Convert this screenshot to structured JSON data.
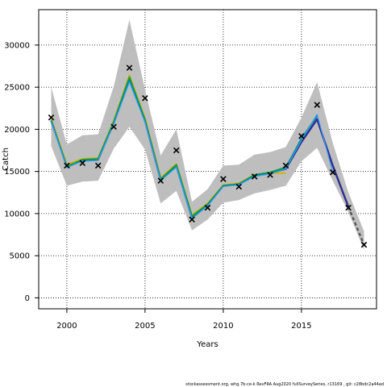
{
  "chart_data": {
    "type": "line",
    "title": "",
    "xlabel": "Years",
    "ylabel": "Catch",
    "xlim": [
      1998.2,
      2019.8
    ],
    "ylim": [
      -1300,
      34200
    ],
    "x_ticks": [
      2000,
      2005,
      2010,
      2015
    ],
    "y_ticks": [
      0,
      5000,
      10000,
      15000,
      20000,
      25000,
      30000
    ],
    "grid": true,
    "grid_style": "dotted",
    "legend": "none",
    "observed": {
      "marker": "x",
      "x": [
        1999,
        2000,
        2001,
        2002,
        2003,
        2004,
        2005,
        2006,
        2007,
        2008,
        2009,
        2010,
        2011,
        2012,
        2013,
        2014,
        2015,
        2016,
        2017,
        2018,
        2019
      ],
      "y": [
        21400,
        15700,
        16000,
        15700,
        20300,
        27300,
        23700,
        13900,
        17500,
        9300,
        10700,
        14100,
        13200,
        14400,
        14600,
        15700,
        19200,
        22900,
        14900,
        10700,
        6300
      ]
    },
    "confidence_band": {
      "color": "#bebebe",
      "x": [
        1999,
        2000,
        2001,
        2002,
        2003,
        2004,
        2005,
        2006,
        2007,
        2008,
        2009,
        2010,
        2011,
        2012,
        2013,
        2014,
        2015,
        2016,
        2017,
        2018,
        2019
      ],
      "lower": [
        18000,
        13300,
        13800,
        13900,
        17700,
        20300,
        17600,
        11200,
        12700,
        8000,
        9300,
        11300,
        11600,
        12400,
        12800,
        13300,
        16200,
        17800,
        13900,
        10200,
        5700
      ],
      "upper": [
        25000,
        18200,
        19300,
        19400,
        25100,
        33000,
        24700,
        16900,
        20000,
        11400,
        12900,
        15700,
        15800,
        17000,
        17300,
        17900,
        21400,
        25600,
        18400,
        12500,
        7900
      ]
    },
    "series": [
      {
        "color": "#2d2d8f",
        "width": 2.4,
        "dashed": false,
        "x": [
          1999,
          2000,
          2001,
          2002,
          2003,
          2004,
          2005,
          2006,
          2007,
          2008,
          2009,
          2010,
          2011,
          2012,
          2013,
          2014,
          2015,
          2016,
          2017,
          2018
        ],
        "y": [
          21000,
          15700,
          16300,
          16400,
          20800,
          26000,
          21000,
          14000,
          15700,
          9500,
          11000,
          13300,
          13500,
          14500,
          14800,
          15300,
          18500,
          21200,
          15700,
          10800
        ]
      },
      {
        "color": "#d2b400",
        "width": 2,
        "dashed": false,
        "x": [
          1999,
          2000,
          2001,
          2002,
          2003,
          2004,
          2005,
          2006,
          2007,
          2008,
          2009,
          2010,
          2011,
          2012,
          2013,
          2014
        ],
        "y": [
          21200,
          15800,
          16500,
          16600,
          21000,
          26400,
          21300,
          14200,
          15900,
          9800,
          11200,
          13400,
          13600,
          14600,
          14800,
          14800
        ]
      },
      {
        "color": "#2aa02a",
        "width": 2,
        "dashed": false,
        "x": [
          1999,
          2000,
          2001,
          2002,
          2003,
          2004,
          2005,
          2006,
          2007,
          2008,
          2009,
          2010,
          2011,
          2012,
          2013,
          2014,
          2015
        ],
        "y": [
          21100,
          15600,
          16400,
          16500,
          20900,
          26200,
          21100,
          14100,
          15800,
          9700,
          11100,
          13300,
          13500,
          14600,
          14900,
          15500,
          18800
        ]
      },
      {
        "color": "#008b8b",
        "width": 2,
        "dashed": false,
        "x": [
          1999,
          2000,
          2001,
          2002,
          2003,
          2004,
          2005,
          2006,
          2007,
          2008,
          2009,
          2010,
          2011,
          2012,
          2013,
          2014,
          2015,
          2016
        ],
        "y": [
          21000,
          15500,
          16300,
          16400,
          20700,
          25900,
          21000,
          14000,
          15600,
          9500,
          11000,
          13300,
          13500,
          14500,
          14800,
          15400,
          18900,
          21600
        ]
      },
      {
        "color": "#3a9ff5",
        "width": 1.2,
        "dashed": false,
        "x": [
          1999,
          2000,
          2001,
          2002,
          2003,
          2004,
          2005,
          2006,
          2007,
          2008,
          2009,
          2010,
          2011,
          2012,
          2013,
          2014,
          2015,
          2016,
          2017
        ],
        "y": [
          20900,
          15500,
          16200,
          16300,
          20600,
          25600,
          20800,
          13900,
          15500,
          9400,
          10900,
          13200,
          13400,
          14400,
          14700,
          15300,
          18700,
          21800,
          14900
        ]
      },
      {
        "color": "#555555",
        "width": 2.4,
        "dashed": true,
        "x": [
          2018,
          2019
        ],
        "y": [
          10800,
          6300
        ]
      }
    ]
  },
  "footer": {
    "text": "stockassessment.org,  whg.7b-ce-k  RevFRA  Aug2020  fullSurveySeries,  r13169 ,  git:  c28bdc2a44ad"
  }
}
